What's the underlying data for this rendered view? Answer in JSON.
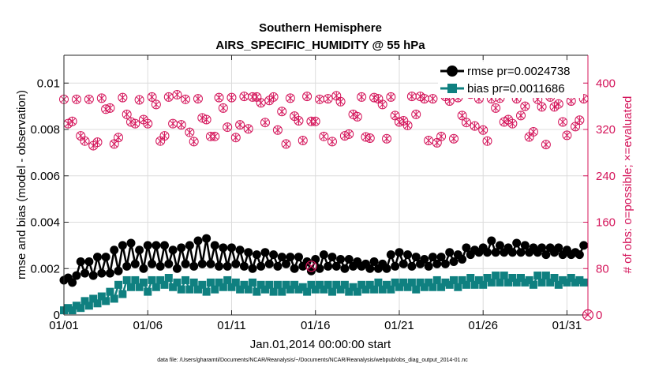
{
  "chart_data": {
    "type": "line",
    "title": "Southern Hemisphere",
    "subtitle": "AIRS_SPECIFIC_HUMIDITY @ 55 hPa",
    "xlabel": "Jan.01,2014 00:00:00 start",
    "ylabel": "rmse and bias (model - observation)",
    "ylabel_right": "# of obs: o=possible; ×=evaluated",
    "footnote": "data file: /Users/gharamti/Documents/NCAR/Reanalysis/~/Documents/NCAR/Reanalysis/webpub/obs_diag_output_2014-01.nc",
    "xlim": [
      0,
      31.25
    ],
    "ylim": [
      0,
      0.0112
    ],
    "ylim_right": [
      0,
      448
    ],
    "x_ticks": [
      0,
      5,
      10,
      15,
      20,
      25,
      30
    ],
    "x_tick_labels": [
      "01/01",
      "01/06",
      "01/11",
      "01/16",
      "01/21",
      "01/26",
      "01/31"
    ],
    "y_ticks": [
      0,
      0.002,
      0.004,
      0.006,
      0.008,
      0.01
    ],
    "y_tick_labels": [
      "0",
      "0.002",
      "0.004",
      "0.006",
      "0.008",
      "0.01"
    ],
    "y_ticks_right": [
      0,
      80,
      160,
      240,
      320,
      400
    ],
    "y_tick_labels_right": [
      "0",
      "80",
      "160",
      "240",
      "320",
      "400"
    ],
    "legend": {
      "placement": "top-right",
      "entries": [
        "rmse pr=0.0024738",
        "bias pr=0.0011686"
      ]
    },
    "colors": {
      "rmse": "#000000",
      "bias": "#0f8080",
      "obs": "#d4145a"
    },
    "series": [
      {
        "name": "rmse pr=0.0024738",
        "axis": "left",
        "marker": "circle",
        "x": [
          0,
          0.25,
          0.5,
          0.75,
          1,
          1.25,
          1.5,
          1.75,
          2,
          2.25,
          2.5,
          2.75,
          3,
          3.25,
          3.5,
          3.75,
          4,
          4.25,
          4.5,
          4.75,
          5,
          5.25,
          5.5,
          5.75,
          6,
          6.25,
          6.5,
          6.75,
          7,
          7.25,
          7.5,
          7.75,
          8,
          8.25,
          8.5,
          8.75,
          9,
          9.25,
          9.5,
          9.75,
          10,
          10.25,
          10.5,
          10.75,
          11,
          11.25,
          11.5,
          11.75,
          12,
          12.25,
          12.5,
          12.75,
          13,
          13.25,
          13.5,
          13.75,
          14,
          14.25,
          14.5,
          14.75,
          15,
          15.25,
          15.5,
          15.75,
          16,
          16.25,
          16.5,
          16.75,
          17,
          17.25,
          17.5,
          17.75,
          18,
          18.25,
          18.5,
          18.75,
          19,
          19.25,
          19.5,
          19.75,
          20,
          20.25,
          20.5,
          20.75,
          21,
          21.25,
          21.5,
          21.75,
          22,
          22.25,
          22.5,
          22.75,
          23,
          23.25,
          23.5,
          23.75,
          24,
          24.25,
          24.5,
          24.75,
          25,
          25.25,
          25.5,
          25.75,
          26,
          26.25,
          26.5,
          26.75,
          27,
          27.25,
          27.5,
          27.75,
          28,
          28.25,
          28.5,
          28.75,
          29,
          29.25,
          29.5,
          29.75,
          30,
          30.25,
          30.5,
          30.75,
          31
        ],
        "values": [
          0.0015,
          0.0016,
          0.0014,
          0.0017,
          0.0023,
          0.0018,
          0.0023,
          0.0017,
          0.0025,
          0.0018,
          0.0025,
          0.0018,
          0.0028,
          0.0019,
          0.003,
          0.0021,
          0.0031,
          0.0022,
          0.0028,
          0.002,
          0.003,
          0.0022,
          0.003,
          0.0021,
          0.003,
          0.0022,
          0.0028,
          0.002,
          0.0029,
          0.0022,
          0.003,
          0.0021,
          0.0032,
          0.0022,
          0.0033,
          0.0022,
          0.003,
          0.0021,
          0.0029,
          0.0021,
          0.0029,
          0.0022,
          0.0028,
          0.0021,
          0.0027,
          0.002,
          0.0026,
          0.0021,
          0.0027,
          0.0022,
          0.0026,
          0.0021,
          0.0025,
          0.0022,
          0.0025,
          0.002,
          0.0025,
          0.0021,
          0.0023,
          0.0019,
          0.0024,
          0.002,
          0.0026,
          0.0021,
          0.0025,
          0.0021,
          0.0024,
          0.002,
          0.0024,
          0.0021,
          0.0023,
          0.0021,
          0.0022,
          0.002,
          0.0023,
          0.002,
          0.0022,
          0.002,
          0.0026,
          0.0021,
          0.0027,
          0.0022,
          0.0026,
          0.0021,
          0.0025,
          0.0022,
          0.0024,
          0.0021,
          0.0025,
          0.0022,
          0.0025,
          0.0022,
          0.0027,
          0.0023,
          0.0026,
          0.0024,
          0.0029,
          0.0026,
          0.0028,
          0.0027,
          0.0029,
          0.0027,
          0.0032,
          0.0027,
          0.003,
          0.0027,
          0.0029,
          0.0027,
          0.0031,
          0.0027,
          0.003,
          0.0027,
          0.0029,
          0.0027,
          0.0029,
          0.0026,
          0.0029,
          0.0027,
          0.0029,
          0.0026,
          0.0028,
          0.0026,
          0.0027,
          0.0026,
          0.003
        ]
      },
      {
        "name": "bias pr=0.0011686",
        "axis": "left",
        "marker": "square",
        "x": [
          0,
          0.25,
          0.5,
          0.75,
          1,
          1.25,
          1.5,
          1.75,
          2,
          2.25,
          2.5,
          2.75,
          3,
          3.25,
          3.5,
          3.75,
          4,
          4.25,
          4.5,
          4.75,
          5,
          5.25,
          5.5,
          5.75,
          6,
          6.25,
          6.5,
          6.75,
          7,
          7.25,
          7.5,
          7.75,
          8,
          8.25,
          8.5,
          8.75,
          9,
          9.25,
          9.5,
          9.75,
          10,
          10.25,
          10.5,
          10.75,
          11,
          11.25,
          11.5,
          11.75,
          12,
          12.25,
          12.5,
          12.75,
          13,
          13.25,
          13.5,
          13.75,
          14,
          14.25,
          14.5,
          14.75,
          15,
          15.25,
          15.5,
          15.75,
          16,
          16.25,
          16.5,
          16.75,
          17,
          17.25,
          17.5,
          17.75,
          18,
          18.25,
          18.5,
          18.75,
          19,
          19.25,
          19.5,
          19.75,
          20,
          20.25,
          20.5,
          20.75,
          21,
          21.25,
          21.5,
          21.75,
          22,
          22.25,
          22.5,
          22.75,
          23,
          23.25,
          23.5,
          23.75,
          24,
          24.25,
          24.5,
          24.75,
          25,
          25.25,
          25.5,
          25.75,
          26,
          26.25,
          26.5,
          26.75,
          27,
          27.25,
          27.5,
          27.75,
          28,
          28.25,
          28.5,
          28.75,
          29,
          29.25,
          29.5,
          29.75,
          30,
          30.25,
          30.5,
          30.75,
          31
        ],
        "values": [
          0.0002,
          0.0003,
          0.0002,
          0.0004,
          0.0003,
          0.0006,
          0.0004,
          0.0007,
          0.0005,
          0.0008,
          0.0006,
          0.001,
          0.0007,
          0.0013,
          0.0009,
          0.0015,
          0.0012,
          0.0015,
          0.0012,
          0.0014,
          0.001,
          0.0015,
          0.0012,
          0.0015,
          0.0013,
          0.0016,
          0.0012,
          0.0014,
          0.0011,
          0.0015,
          0.0011,
          0.0014,
          0.0011,
          0.0013,
          0.001,
          0.0014,
          0.0011,
          0.0014,
          0.0012,
          0.0015,
          0.0012,
          0.0014,
          0.0011,
          0.0013,
          0.0011,
          0.0014,
          0.001,
          0.0013,
          0.0011,
          0.0013,
          0.001,
          0.0013,
          0.001,
          0.0013,
          0.0011,
          0.0013,
          0.0011,
          0.0012,
          0.001,
          0.0013,
          0.0011,
          0.0013,
          0.0011,
          0.0013,
          0.001,
          0.0013,
          0.0011,
          0.0013,
          0.001,
          0.0012,
          0.001,
          0.0013,
          0.0011,
          0.0013,
          0.0011,
          0.0014,
          0.0011,
          0.0013,
          0.0011,
          0.0014,
          0.0012,
          0.0014,
          0.0012,
          0.0014,
          0.0011,
          0.0014,
          0.0012,
          0.0014,
          0.0012,
          0.0015,
          0.0012,
          0.0014,
          0.0013,
          0.0015,
          0.0012,
          0.0015,
          0.0013,
          0.0016,
          0.0013,
          0.0015,
          0.0013,
          0.0016,
          0.0014,
          0.0017,
          0.0014,
          0.0017,
          0.0014,
          0.0016,
          0.0014,
          0.0016,
          0.0014,
          0.0015,
          0.0013,
          0.0017,
          0.0014,
          0.0017,
          0.0014,
          0.0016,
          0.0013,
          0.0015,
          0.0014,
          0.0016,
          0.0014,
          0.0015,
          0.0014
        ]
      },
      {
        "name": "# of obs possible",
        "axis": "right",
        "marker": "circle-open",
        "x": [
          0,
          0.25,
          0.5,
          0.75,
          1,
          1.25,
          1.5,
          1.75,
          2,
          2.25,
          2.5,
          2.75,
          3,
          3.25,
          3.5,
          3.75,
          4,
          4.25,
          4.5,
          4.75,
          5,
          5.25,
          5.5,
          5.75,
          6,
          6.25,
          6.5,
          6.75,
          7,
          7.25,
          7.5,
          7.75,
          8,
          8.25,
          8.5,
          8.75,
          9,
          9.25,
          9.5,
          9.75,
          10,
          10.25,
          10.5,
          10.75,
          11,
          11.25,
          11.5,
          11.75,
          12,
          12.25,
          12.5,
          12.75,
          13,
          13.25,
          13.5,
          13.75,
          14,
          14.25,
          14.5,
          14.75,
          15,
          15.25,
          15.5,
          15.75,
          16,
          16.25,
          16.5,
          16.75,
          17,
          17.25,
          17.5,
          17.75,
          18,
          18.25,
          18.5,
          18.75,
          19,
          19.25,
          19.5,
          19.75,
          20,
          20.25,
          20.5,
          20.75,
          21,
          21.25,
          21.5,
          21.75,
          22,
          22.25,
          22.5,
          22.75,
          23,
          23.25,
          23.5,
          23.75,
          24,
          24.25,
          24.5,
          24.75,
          25,
          25.25,
          25.5,
          25.75,
          26,
          26.25,
          26.5,
          26.75,
          27,
          27.25,
          27.5,
          27.75,
          28,
          28.25,
          28.5,
          28.75,
          29,
          29.25,
          29.5,
          29.75,
          30,
          30.25,
          30.5,
          30.75,
          31
        ],
        "values": [
          372,
          330,
          334,
          372,
          309,
          300,
          372,
          292,
          298,
          374,
          355,
          357,
          295,
          306,
          375,
          346,
          333,
          330,
          371,
          337,
          330,
          376,
          363,
          300,
          309,
          376,
          330,
          380,
          328,
          372,
          315,
          299,
          373,
          340,
          337,
          308,
          308,
          375,
          357,
          324,
          375,
          306,
          328,
          377,
          321,
          376,
          376,
          366,
          332,
          370,
          376,
          319,
          351,
          295,
          374,
          343,
          335,
          301,
          377,
          334,
          334,
          372,
          308,
          373,
          299,
          378,
          368,
          309,
          312,
          346,
          342,
          376,
          307,
          305,
          375,
          373,
          363,
          304,
          376,
          344,
          333,
          335,
          327,
          377,
          346,
          377,
          373,
          301,
          373,
          297,
          308,
          377,
          369,
          304,
          375,
          344,
          332,
          381,
          326,
          373,
          319,
          300,
          373,
          357,
          374,
          333,
          337,
          330,
          373,
          344,
          360,
          307,
          316,
          372,
          359,
          294,
          376,
          359,
          364,
          333,
          310,
          369,
          325,
          336,
          373
        ]
      },
      {
        "name": "# of obs evaluated",
        "axis": "right",
        "marker": "x",
        "x": [
          0,
          0.25,
          0.5,
          0.75,
          1,
          1.25,
          1.5,
          1.75,
          2,
          2.25,
          2.5,
          2.75,
          3,
          3.25,
          3.5,
          3.75,
          4,
          4.25,
          4.5,
          4.75,
          5,
          5.25,
          5.5,
          5.75,
          6,
          6.25,
          6.5,
          6.75,
          7,
          7.25,
          7.5,
          7.75,
          8,
          8.25,
          8.5,
          8.75,
          9,
          9.25,
          9.5,
          9.75,
          10,
          10.25,
          10.5,
          10.75,
          11,
          11.25,
          11.5,
          11.75,
          12,
          12.25,
          12.5,
          12.75,
          13,
          13.25,
          13.5,
          13.75,
          14,
          14.25,
          14.5,
          14.75,
          15,
          15.25,
          15.5,
          15.75,
          16,
          16.25,
          16.5,
          16.75,
          17,
          17.25,
          17.5,
          17.75,
          18,
          18.25,
          18.5,
          18.75,
          19,
          19.25,
          19.5,
          19.75,
          20,
          20.25,
          20.5,
          20.75,
          21,
          21.25,
          21.5,
          21.75,
          22,
          22.25,
          22.5,
          22.75,
          23,
          23.25,
          23.5,
          23.75,
          24,
          24.25,
          24.5,
          24.75,
          25,
          25.25,
          25.5,
          25.75,
          26,
          26.25,
          26.5,
          26.75,
          27,
          27.25,
          27.5,
          27.75,
          28,
          28.25,
          28.5,
          28.75,
          29,
          29.25,
          29.5,
          29.75,
          30,
          30.25,
          30.5,
          30.75,
          31
        ],
        "values": [
          372,
          330,
          334,
          372,
          309,
          300,
          372,
          292,
          298,
          374,
          355,
          357,
          295,
          306,
          375,
          346,
          333,
          330,
          371,
          337,
          330,
          376,
          363,
          300,
          309,
          376,
          330,
          380,
          328,
          372,
          315,
          299,
          373,
          340,
          337,
          308,
          308,
          375,
          357,
          324,
          375,
          306,
          328,
          377,
          321,
          376,
          376,
          366,
          332,
          370,
          376,
          319,
          351,
          295,
          374,
          343,
          335,
          301,
          377,
          334,
          334,
          372,
          308,
          373,
          299,
          378,
          368,
          309,
          312,
          346,
          342,
          376,
          307,
          305,
          375,
          373,
          363,
          304,
          376,
          344,
          333,
          335,
          327,
          377,
          346,
          377,
          373,
          301,
          373,
          297,
          308,
          377,
          369,
          304,
          375,
          344,
          332,
          381,
          326,
          373,
          319,
          300,
          373,
          357,
          374,
          333,
          337,
          330,
          373,
          344,
          360,
          307,
          316,
          372,
          359,
          294,
          376,
          359,
          364,
          333,
          310,
          369,
          325,
          336,
          373
        ]
      }
    ],
    "annotations": [
      {
        "x": 14.75,
        "y": 0.0021,
        "axis": "left",
        "marker": "circle-open-x",
        "color": "#d4145a"
      },
      {
        "x": 31.25,
        "y": 0,
        "axis": "right",
        "marker": "circle-open-x",
        "color": "#d4145a"
      }
    ]
  }
}
